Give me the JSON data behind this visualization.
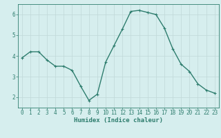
{
  "x": [
    0,
    1,
    2,
    3,
    4,
    5,
    6,
    7,
    8,
    9,
    10,
    11,
    12,
    13,
    14,
    15,
    16,
    17,
    18,
    19,
    20,
    21,
    22,
    23
  ],
  "y": [
    3.9,
    4.2,
    4.2,
    3.8,
    3.5,
    3.5,
    3.3,
    2.55,
    1.85,
    2.15,
    3.7,
    4.5,
    5.3,
    6.15,
    6.2,
    6.1,
    6.0,
    5.35,
    4.35,
    3.6,
    3.25,
    2.65,
    2.35,
    2.2
  ],
  "line_color": "#2e7d6e",
  "marker": "+",
  "marker_size": 3,
  "background_color": "#d6eeee",
  "grid_color": "#c0d8d8",
  "xlabel": "Humidex (Indice chaleur)",
  "xlim": [
    -0.5,
    23.5
  ],
  "ylim": [
    1.5,
    6.5
  ],
  "yticks": [
    2,
    3,
    4,
    5,
    6
  ],
  "xticks": [
    0,
    1,
    2,
    3,
    4,
    5,
    6,
    7,
    8,
    9,
    10,
    11,
    12,
    13,
    14,
    15,
    16,
    17,
    18,
    19,
    20,
    21,
    22,
    23
  ],
  "tick_label_fontsize": 5.5,
  "xlabel_fontsize": 6.5,
  "axis_color": "#2e7d6e",
  "line_width": 1.0,
  "marker_edge_width": 0.8
}
